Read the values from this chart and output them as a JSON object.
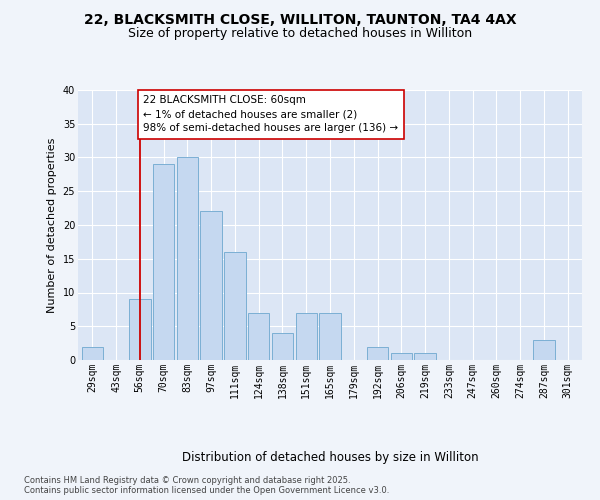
{
  "title_line1": "22, BLACKSMITH CLOSE, WILLITON, TAUNTON, TA4 4AX",
  "title_line2": "Size of property relative to detached houses in Williton",
  "xlabel": "Distribution of detached houses by size in Williton",
  "ylabel": "Number of detached properties",
  "categories": [
    "29sqm",
    "43sqm",
    "56sqm",
    "70sqm",
    "83sqm",
    "97sqm",
    "111sqm",
    "124sqm",
    "138sqm",
    "151sqm",
    "165sqm",
    "179sqm",
    "192sqm",
    "206sqm",
    "219sqm",
    "233sqm",
    "247sqm",
    "260sqm",
    "274sqm",
    "287sqm",
    "301sqm"
  ],
  "values": [
    2,
    0,
    9,
    29,
    30,
    22,
    16,
    7,
    4,
    7,
    7,
    0,
    2,
    1,
    1,
    0,
    0,
    0,
    0,
    3,
    0
  ],
  "bar_color": "#c5d8f0",
  "bar_edge_color": "#7bafd4",
  "vline_x_index": 2,
  "vline_color": "#cc0000",
  "annotation_text": "22 BLACKSMITH CLOSE: 60sqm\n← 1% of detached houses are smaller (2)\n98% of semi-detached houses are larger (136) →",
  "annotation_box_facecolor": "#ffffff",
  "annotation_box_edgecolor": "#cc0000",
  "ylim": [
    0,
    40
  ],
  "yticks": [
    0,
    5,
    10,
    15,
    20,
    25,
    30,
    35,
    40
  ],
  "footer_text": "Contains HM Land Registry data © Crown copyright and database right 2025.\nContains public sector information licensed under the Open Government Licence v3.0.",
  "fig_bg_color": "#f0f4fa",
  "axes_bg_color": "#dce6f5",
  "grid_color": "#ffffff",
  "title_fontsize": 10,
  "subtitle_fontsize": 9,
  "tick_fontsize": 7,
  "ylabel_fontsize": 8,
  "xlabel_fontsize": 8.5,
  "footer_fontsize": 6,
  "annotation_fontsize": 7.5
}
